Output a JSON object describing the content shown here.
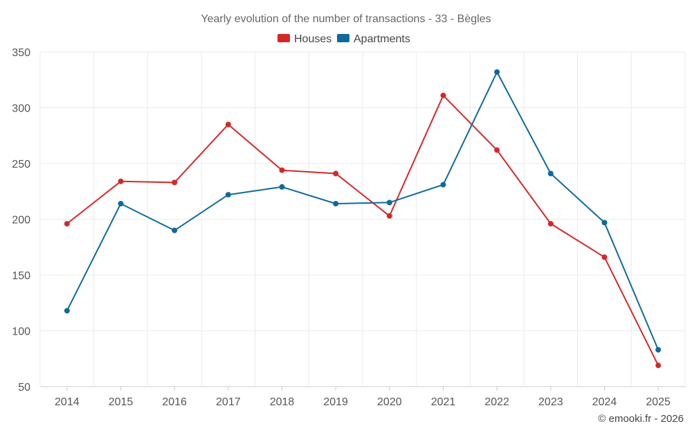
{
  "chart_data": {
    "type": "line",
    "title": "Yearly evolution of the number of transactions - 33 - Bègles",
    "categories": [
      "2014",
      "2015",
      "2016",
      "2017",
      "2018",
      "2019",
      "2020",
      "2021",
      "2022",
      "2023",
      "2024",
      "2025"
    ],
    "ylim": [
      50,
      350
    ],
    "yticks": [
      50,
      100,
      150,
      200,
      250,
      300,
      350
    ],
    "grid": true,
    "legend_position": "top-center",
    "series": [
      {
        "name": "Houses",
        "color": "#d62728",
        "values": [
          196,
          234,
          233,
          285,
          244,
          241,
          203,
          311,
          262,
          196,
          166,
          69
        ]
      },
      {
        "name": "Apartments",
        "color": "#0e6a9b",
        "values": [
          118,
          214,
          190,
          222,
          229,
          214,
          215,
          231,
          332,
          241,
          197,
          83
        ]
      }
    ]
  },
  "credit": "© emooki.fr - 2026"
}
